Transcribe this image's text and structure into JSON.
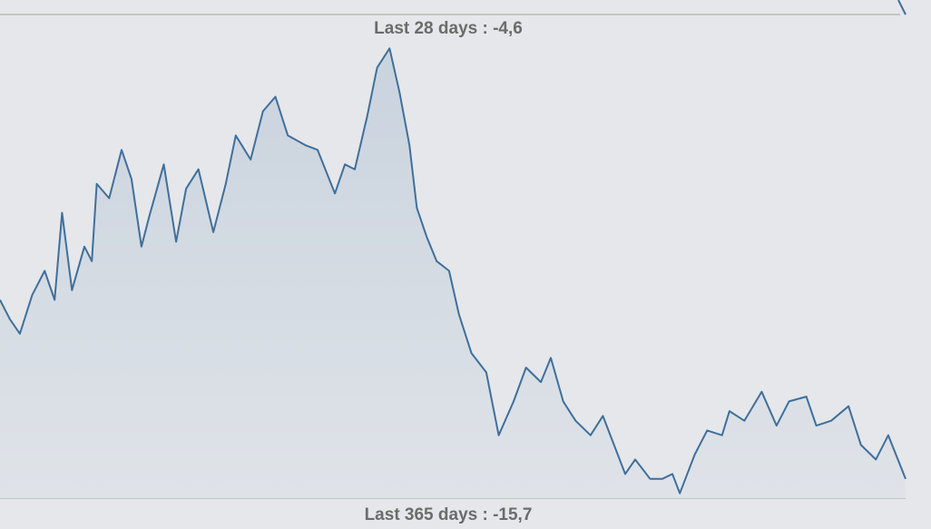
{
  "chart_data": {
    "type": "line",
    "top_label": "Last 28 days : -4,6",
    "bottom_label": "Last 365 days : -15,7",
    "xlim": [
      0,
      365
    ],
    "ylim": [
      0,
      100
    ],
    "x": [
      0,
      4,
      8,
      13,
      18,
      22,
      25,
      29,
      34,
      37,
      39,
      44,
      49,
      53,
      57,
      60,
      66,
      71,
      75,
      80,
      86,
      91,
      95,
      101,
      106,
      111,
      116,
      123,
      128,
      135,
      139,
      143,
      148,
      152,
      157,
      161,
      165,
      168,
      172,
      176,
      181,
      185,
      190,
      196,
      201,
      207,
      212,
      218,
      222,
      227,
      232,
      238,
      243,
      249,
      252,
      256,
      262,
      267,
      271,
      274,
      280,
      285,
      291,
      294,
      300,
      307,
      313,
      318,
      325,
      329,
      335,
      342,
      347,
      353,
      358,
      365
    ],
    "series": [
      {
        "color": "#3f6f9b",
        "values": [
          41,
          37,
          34,
          42,
          47,
          41,
          59,
          43,
          52,
          49,
          65,
          62,
          72,
          66,
          52,
          58,
          69,
          53,
          64,
          68,
          55,
          65,
          75,
          70,
          80,
          83,
          75,
          73,
          72,
          63,
          69,
          68,
          79,
          89,
          93,
          84,
          73,
          60,
          54,
          49,
          47,
          38,
          30,
          26,
          13,
          20,
          27,
          24,
          29,
          20,
          16,
          13,
          17,
          9,
          5,
          8,
          4,
          4,
          5,
          1,
          9,
          14,
          13,
          18,
          16,
          22,
          15,
          20,
          21,
          15,
          16,
          19,
          11,
          8,
          13,
          4
        ]
      }
    ]
  }
}
